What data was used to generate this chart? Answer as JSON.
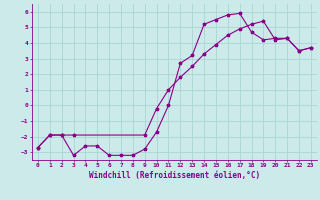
{
  "xlabel": "Windchill (Refroidissement éolien,°C)",
  "bg_color": "#cceaea",
  "grid_color": "#aad4d4",
  "line_color": "#880088",
  "xlim": [
    -0.5,
    23.5
  ],
  "ylim": [
    -3.5,
    6.5
  ],
  "xticks": [
    0,
    1,
    2,
    3,
    4,
    5,
    6,
    7,
    8,
    9,
    10,
    11,
    12,
    13,
    14,
    15,
    16,
    17,
    18,
    19,
    20,
    21,
    22,
    23
  ],
  "yticks": [
    -3,
    -2,
    -1,
    0,
    1,
    2,
    3,
    4,
    5,
    6
  ],
  "series1_x": [
    0,
    1,
    2,
    3,
    4,
    5,
    6,
    7,
    8,
    9,
    10,
    11,
    12,
    13,
    14,
    15,
    16,
    17,
    18,
    19,
    20,
    21,
    22,
    23
  ],
  "series1_y": [
    -2.7,
    -1.9,
    -1.9,
    -3.2,
    -2.6,
    -2.6,
    -3.2,
    -3.2,
    -3.2,
    -2.8,
    -1.7,
    0.0,
    2.7,
    3.2,
    5.2,
    5.5,
    5.8,
    5.9,
    4.7,
    4.2,
    4.3,
    4.3,
    3.5,
    3.7
  ],
  "series2_x": [
    0,
    1,
    2,
    3,
    9,
    10,
    11,
    12,
    13,
    14,
    15,
    16,
    17,
    18,
    19,
    20,
    21,
    22,
    23
  ],
  "series2_y": [
    -2.7,
    -1.9,
    -1.9,
    -1.9,
    -1.9,
    -0.2,
    1.0,
    1.8,
    2.5,
    3.3,
    3.9,
    4.5,
    4.9,
    5.2,
    5.4,
    4.2,
    4.3,
    3.5,
    3.7
  ],
  "marker_size": 2.5,
  "linewidth": 0.8,
  "tick_fontsize": 4.5,
  "label_fontsize": 5.5
}
